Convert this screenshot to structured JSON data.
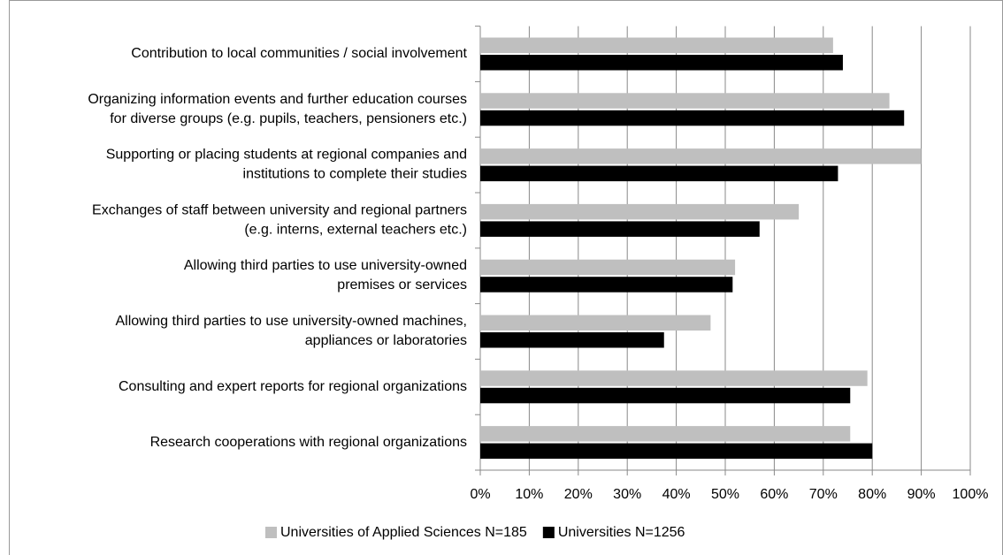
{
  "chart_data": {
    "type": "bar",
    "orientation": "horizontal",
    "categories": [
      "Contribution to local communities / social involvement",
      "Organizing information events and further education courses\nfor diverse groups (e.g. pupils, teachers, pensioners etc.)",
      "Supporting or placing students at regional companies and\ninstitutions to complete their studies",
      "Exchanges of staff between university and regional partners\n(e.g. interns, external teachers etc.)",
      "Allowing third parties to use university-owned\npremises or services",
      "Allowing third parties to use university-owned machines,\nappliances or laboratories",
      "Consulting and expert reports for regional organizations",
      "Research cooperations with regional organizations"
    ],
    "series": [
      {
        "name": "Universities of Applied Sciences N=185",
        "color": "#bfbfbf",
        "values": [
          72,
          83.5,
          90,
          65,
          52,
          47,
          79,
          75.5
        ]
      },
      {
        "name": "Universities N=1256",
        "color": "#000000",
        "values": [
          74,
          86.5,
          73,
          57,
          51.5,
          37.5,
          75.5,
          80
        ]
      }
    ],
    "xlim": [
      0,
      100
    ],
    "xticks": [
      {
        "value": 0,
        "label": "0%"
      },
      {
        "value": 10,
        "label": "10%"
      },
      {
        "value": 20,
        "label": "20%"
      },
      {
        "value": 30,
        "label": "30%"
      },
      {
        "value": 40,
        "label": "40%"
      },
      {
        "value": 50,
        "label": "50%"
      },
      {
        "value": 60,
        "label": "60%"
      },
      {
        "value": 70,
        "label": "70%"
      },
      {
        "value": 80,
        "label": "80%"
      },
      {
        "value": 90,
        "label": "90%"
      },
      {
        "value": 100,
        "label": "100%"
      }
    ],
    "grid": true,
    "legend": "bottom"
  }
}
